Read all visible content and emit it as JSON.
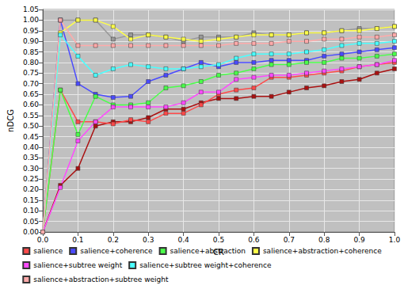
{
  "chart_data": {
    "type": "line",
    "x_label": "CR",
    "y_label": "nDCG",
    "x": [
      0,
      0.05,
      0.1,
      0.15,
      0.2,
      0.25,
      0.3,
      0.35,
      0.4,
      0.45,
      0.5,
      0.55,
      0.6,
      0.65,
      0.7,
      0.75,
      0.8,
      0.85,
      0.9,
      0.95,
      1.0
    ],
    "xlim": [
      0,
      1.0
    ],
    "xticks": [
      {
        "value": 0,
        "label": "0.0"
      },
      0.1,
      0.2,
      0.3,
      0.4,
      0.5,
      0.6,
      0.7,
      0.8,
      0.9,
      {
        "value": 1.0,
        "label": "1.0"
      }
    ],
    "ylim": [
      0,
      1.05
    ],
    "yticks": [
      {
        "value": 0,
        "label": "0.00"
      },
      0.05,
      {
        "value": 0.1,
        "label": "0.10"
      },
      0.15,
      {
        "value": 0.2,
        "label": "0.20"
      },
      0.25,
      {
        "value": 0.3,
        "label": "0.30"
      },
      0.35,
      {
        "value": 0.4,
        "label": "0.40"
      },
      0.45,
      {
        "value": 0.5,
        "label": "0.50"
      },
      0.55,
      {
        "value": 0.6,
        "label": "0.60"
      },
      0.65,
      {
        "value": 0.7,
        "label": "0.70"
      },
      0.75,
      {
        "value": 0.8,
        "label": "0.80"
      },
      0.85,
      {
        "value": 0.9,
        "label": "0.90"
      },
      0.95,
      {
        "value": 1.0,
        "label": "1.00"
      },
      1.05
    ],
    "grid": true,
    "legend": "bottom",
    "marker": "square",
    "series": [
      {
        "color": "#999999",
        "values": [
          0,
          1.0,
          1.0,
          1.0,
          0.91,
          0.93,
          0.93,
          0.92,
          0.9,
          0.92,
          0.92,
          0.92,
          0.94,
          0.93,
          0.93,
          0.94,
          0.94,
          0.95,
          0.96,
          0.96,
          0.97
        ]
      },
      {
        "color": "#aa1111",
        "values": [
          0,
          0.22,
          0.3,
          0.5,
          0.52,
          0.52,
          0.54,
          0.58,
          0.58,
          0.61,
          0.63,
          0.63,
          0.64,
          0.64,
          0.66,
          0.68,
          0.69,
          0.71,
          0.72,
          0.75,
          0.77
        ]
      },
      {
        "name": "salience",
        "color": "#ff4a4a",
        "values": [
          0,
          0.67,
          0.52,
          0.52,
          0.51,
          0.53,
          0.52,
          0.56,
          0.56,
          0.6,
          0.65,
          0.67,
          0.68,
          0.73,
          0.73,
          0.74,
          0.75,
          0.76,
          0.78,
          0.79,
          0.8
        ]
      },
      {
        "name": "salience+coherence",
        "color": "#4a4aff",
        "values": [
          0,
          1.0,
          0.7,
          0.65,
          0.635,
          0.64,
          0.71,
          0.74,
          0.77,
          0.8,
          0.78,
          0.8,
          0.8,
          0.81,
          0.81,
          0.81,
          0.83,
          0.84,
          0.85,
          0.86,
          0.87
        ]
      },
      {
        "name": "salience+abstraction",
        "color": "#4aff4a",
        "values": [
          0,
          0.67,
          0.46,
          0.64,
          0.6,
          0.6,
          0.61,
          0.68,
          0.69,
          0.71,
          0.74,
          0.75,
          0.77,
          0.79,
          0.79,
          0.8,
          0.8,
          0.82,
          0.82,
          0.83,
          0.84
        ]
      },
      {
        "name": "salience+abstraction+coherence",
        "color": "#ffff4a",
        "values": [
          0,
          0.94,
          1.0,
          1.0,
          0.97,
          0.91,
          0.93,
          0.92,
          0.91,
          0.9,
          0.91,
          0.92,
          0.93,
          0.93,
          0.93,
          0.94,
          0.94,
          0.95,
          0.95,
          0.96,
          0.97
        ]
      },
      {
        "name": "salience+subtree weight",
        "color": "#ff4aff",
        "values": [
          0,
          0.21,
          0.43,
          0.52,
          0.59,
          0.59,
          0.59,
          0.59,
          0.61,
          0.66,
          0.66,
          0.72,
          0.73,
          0.74,
          0.74,
          0.75,
          0.76,
          0.77,
          0.78,
          0.79,
          0.81
        ]
      },
      {
        "name": "salience+subtree weight+coherence",
        "color": "#4affff",
        "values": [
          0,
          0.93,
          0.83,
          0.74,
          0.77,
          0.79,
          0.78,
          0.77,
          0.77,
          0.78,
          0.79,
          0.82,
          0.84,
          0.84,
          0.84,
          0.85,
          0.86,
          0.88,
          0.89,
          0.89,
          0.9
        ]
      },
      {
        "name": "salience+abstraction+subtree weight",
        "color": "#ffaaaa",
        "values": [
          0,
          1.0,
          0.88,
          0.88,
          0.88,
          0.88,
          0.88,
          0.88,
          0.88,
          0.88,
          0.88,
          0.89,
          0.89,
          0.89,
          0.9,
          0.9,
          0.91,
          0.91,
          0.92,
          0.92,
          0.93
        ]
      }
    ]
  }
}
